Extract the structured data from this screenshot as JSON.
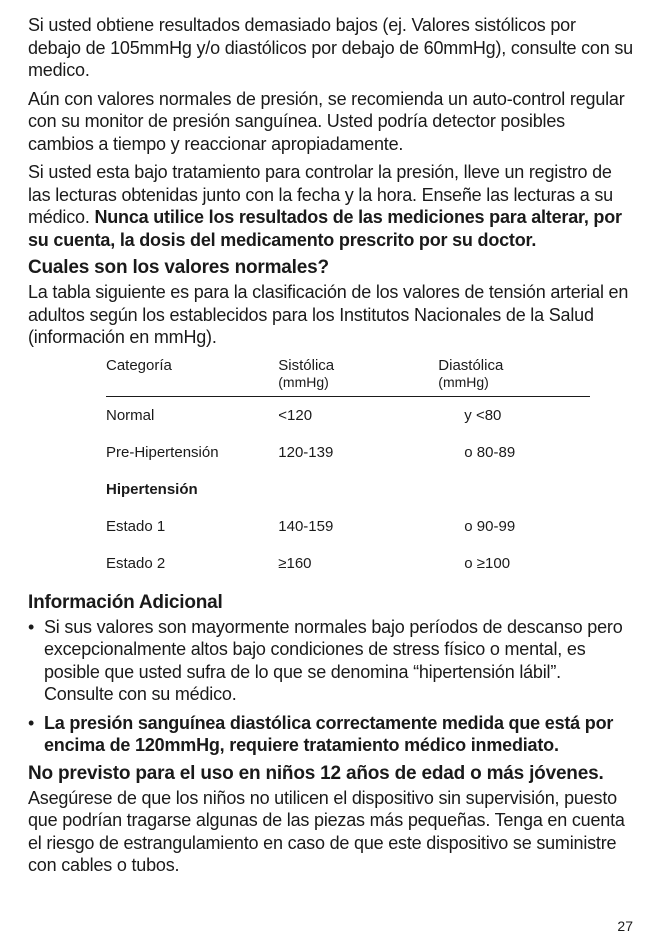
{
  "paragraphs": {
    "p1": "Si usted obtiene resultados demasiado bajos (ej. Valores sistólicos por debajo de 105mmHg y/o diastólicos por debajo de 60mmHg), consulte con su medico.",
    "p2": "Aún con valores normales de presión, se recomienda un auto-control regular con su monitor de presión sanguínea. Usted podría detector posibles cambios a tiempo y reaccionar apropiadamente.",
    "p3a": "Si usted esta bajo tratamiento para controlar la presión, lleve un registro de las lecturas obtenidas junto con la fecha y la hora. Enseñe las lecturas a su médico. ",
    "p3b": "Nunca utilice los resultados de las mediciones para alterar, por su cuenta, la dosis del medicamento prescrito por su doctor.",
    "h_valores": "Cuales son los valores normales?",
    "p4": "La tabla siguiente es para la clasificación de los valores de tensión arterial en adultos según los establecidos para los Institutos Nacionales de la Salud (información en mmHg).",
    "h_info": "Información Adicional",
    "li1": "Si sus valores son mayormente normales bajo períodos de descanso pero excepcionalmente altos bajo condiciones de stress físico o mental, es posible que usted sufra de lo que se denomina “hipertensión lábil”. Consulte con su médico.",
    "li2": "La presión sanguínea diastólica correctamente medida que está por encima de 120mmHg, requiere tratamiento médico inmediato.",
    "h_ninos": "No previsto para el uso en niños 12 años de edad o más jóvenes.",
    "p5": "Asegúrese de que los niños no utilicen el dispositivo sin supervisión, puesto que podrían tragarse algunas de las piezas más pequeñas. Tenga en cuenta el riesgo de estrangulamiento en caso de que este dispositivo se suministre con cables o tubos."
  },
  "table": {
    "headers": {
      "cat": "Categoría",
      "sys": "Sistólica",
      "sys_unit": "(mmHg)",
      "dia": "Diastólica",
      "dia_unit": "(mmHg)"
    },
    "rows": [
      {
        "cat": "Normal",
        "sys": "<120",
        "dia": "y <80",
        "bold": false
      },
      {
        "cat": "Pre-Hipertensión",
        "sys": "120-139",
        "dia": "o 80-89",
        "bold": false
      },
      {
        "cat": "Hipertensión",
        "sys": "",
        "dia": "",
        "bold": true
      },
      {
        "cat": "Estado 1",
        "sys": "140-159",
        "dia": "o 90-99",
        "bold": false
      },
      {
        "cat": "Estado 2",
        "sys": "≥160",
        "dia": "o ≥100",
        "bold": false
      }
    ]
  },
  "page_number": "27"
}
